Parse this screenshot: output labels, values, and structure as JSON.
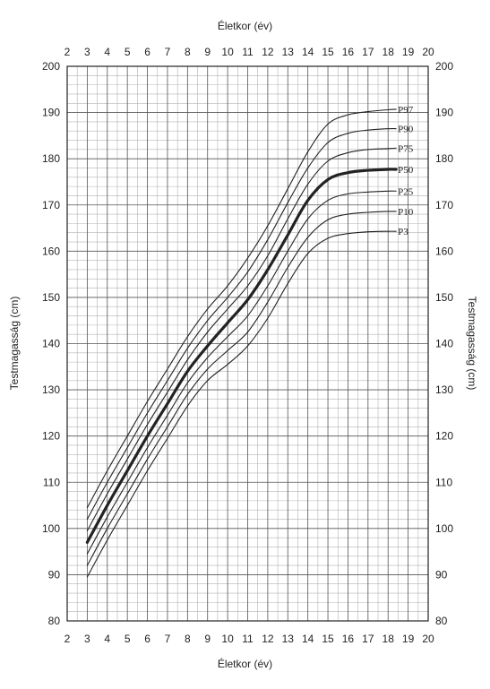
{
  "chart_data": {
    "type": "line",
    "xlabel_top": "Életkor (év)",
    "xlabel_bottom": "Életkor (év)",
    "ylabel_left": "Testmagasság (cm)",
    "ylabel_right": "Testmagasság (cm)",
    "xlim": [
      2,
      20
    ],
    "ylim": [
      80,
      200
    ],
    "x_ticks": [
      2,
      3,
      4,
      5,
      6,
      7,
      8,
      9,
      10,
      11,
      12,
      13,
      14,
      15,
      16,
      17,
      18,
      19,
      20
    ],
    "y_ticks": [
      80,
      90,
      100,
      110,
      120,
      130,
      140,
      150,
      160,
      170,
      180,
      190,
      200
    ],
    "grid": true,
    "x": [
      3,
      4,
      5,
      6,
      7,
      8,
      9,
      10,
      11,
      12,
      13,
      14,
      15,
      16,
      17,
      18,
      18.4
    ],
    "series": [
      {
        "name": "P97",
        "bold": false,
        "values": [
          104.5,
          112.5,
          120,
          127.5,
          134.5,
          141.5,
          147.5,
          152.5,
          158.5,
          165.5,
          173.5,
          181.5,
          187.5,
          189.5,
          190.2,
          190.6,
          190.7
        ]
      },
      {
        "name": "P90",
        "bold": false,
        "values": [
          102,
          110,
          117.5,
          125,
          132,
          139,
          145,
          150,
          155.5,
          162.5,
          170.5,
          178,
          183.5,
          185.5,
          186.2,
          186.5,
          186.5
        ]
      },
      {
        "name": "P75",
        "bold": false,
        "values": [
          99.5,
          107.5,
          115,
          122.5,
          129.5,
          136.5,
          142.5,
          147.5,
          152.5,
          159,
          167,
          174.5,
          179.5,
          181.3,
          182,
          182.2,
          182.3
        ]
      },
      {
        "name": "P50",
        "bold": true,
        "values": [
          97,
          105,
          112.5,
          120,
          127,
          134,
          139.5,
          144.5,
          149.5,
          156,
          163.5,
          171,
          175.5,
          177,
          177.5,
          177.7,
          177.7
        ]
      },
      {
        "name": "P25",
        "bold": false,
        "values": [
          94.5,
          102.5,
          110,
          117.5,
          124.5,
          131.5,
          137,
          141.5,
          146,
          152.5,
          160,
          167,
          171,
          172.4,
          172.8,
          173,
          173
        ]
      },
      {
        "name": "P10",
        "bold": false,
        "values": [
          92,
          100,
          107.5,
          115,
          122,
          129,
          134.5,
          138.5,
          142.5,
          149,
          156.5,
          163,
          166.8,
          168,
          168.4,
          168.6,
          168.6
        ]
      },
      {
        "name": "P3",
        "bold": false,
        "values": [
          89.5,
          97.5,
          105,
          112.5,
          119.5,
          126.5,
          132,
          135.5,
          139.5,
          145.5,
          153,
          159.5,
          162.8,
          163.8,
          164.2,
          164.3,
          164.3
        ]
      }
    ],
    "colors": {
      "line": "#222222",
      "grid_minor": "#b5b5b5",
      "grid_major": "#555555",
      "frame": "#222222"
    }
  }
}
